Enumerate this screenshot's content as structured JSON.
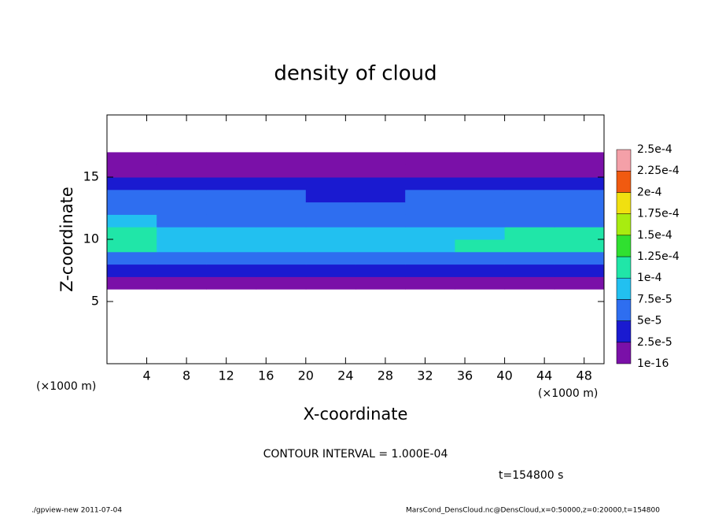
{
  "chart_data": {
    "type": "heatmap",
    "title": "density of cloud",
    "xlabel": "X-coordinate",
    "ylabel": "Z-coordinate",
    "xunit": "(×1000 m)",
    "yunit": "(×1000 m)",
    "contour_note": "CONTOUR INTERVAL = 1.000E-04",
    "time_note": "t=154800 s",
    "footer_left": "./gpview-new  2011-07-04",
    "footer_right": "MarsCond_DensCloud.nc@DensCloud,x=0:50000,z=0:20000,t=154800",
    "xlim": [
      0,
      50
    ],
    "ylim": [
      0,
      20
    ],
    "xticks": [
      4,
      8,
      12,
      16,
      20,
      24,
      28,
      32,
      36,
      40,
      44,
      48
    ],
    "yticks": [
      5,
      10,
      15
    ],
    "x": [
      0,
      5,
      10,
      15,
      20,
      25,
      30,
      35,
      40,
      45,
      50
    ],
    "y": [
      6,
      7,
      8,
      9,
      10,
      11,
      12,
      13,
      14,
      15,
      16,
      17
    ],
    "values": [
      [
        1e-05,
        1e-05,
        1e-05,
        1e-05,
        1e-05,
        1e-05,
        1e-05,
        1e-05,
        1e-05,
        1e-05
      ],
      [
        3e-05,
        3e-05,
        3e-05,
        3e-05,
        3e-05,
        3e-05,
        3e-05,
        3e-05,
        3e-05,
        3e-05
      ],
      [
        6e-05,
        6e-05,
        6e-05,
        6e-05,
        6e-05,
        6e-05,
        6e-05,
        6e-05,
        6e-05,
        6e-05
      ],
      [
        0.00011,
        8e-05,
        8e-05,
        8e-05,
        8e-05,
        8e-05,
        8e-05,
        0.00011,
        0.00011,
        0.00011
      ],
      [
        0.00011,
        8.5e-05,
        8.5e-05,
        8.5e-05,
        8.5e-05,
        8.5e-05,
        8.5e-05,
        8.5e-05,
        0.00012,
        0.00012
      ],
      [
        9e-05,
        6.5e-05,
        6.5e-05,
        6.5e-05,
        6.5e-05,
        6.5e-05,
        6.5e-05,
        6.5e-05,
        6.5e-05,
        6.5e-05
      ],
      [
        6e-05,
        6e-05,
        6e-05,
        6e-05,
        6e-05,
        6e-05,
        6e-05,
        6e-05,
        6e-05,
        6e-05
      ],
      [
        5.5e-05,
        5.5e-05,
        5.5e-05,
        5.5e-05,
        4e-05,
        4e-05,
        5.5e-05,
        5.5e-05,
        5.5e-05,
        5.5e-05
      ],
      [
        4e-05,
        4e-05,
        4e-05,
        4e-05,
        4e-05,
        4e-05,
        4e-05,
        4e-05,
        4e-05,
        4e-05
      ],
      [
        1e-05,
        1e-05,
        1e-05,
        1e-05,
        1e-05,
        1e-05,
        1e-05,
        1e-05,
        1e-05,
        1e-05
      ],
      [
        1e-05,
        1e-05,
        1e-05,
        1e-05,
        1e-05,
        1e-05,
        1e-05,
        1e-05,
        1e-05,
        1e-05
      ]
    ],
    "colorbar": {
      "levels": [
        {
          "value": 1e-16,
          "label": "1e-16"
        },
        {
          "value": 2.5e-05,
          "label": "2.5e-5"
        },
        {
          "value": 5e-05,
          "label": "5e-5"
        },
        {
          "value": 7.5e-05,
          "label": "7.5e-5"
        },
        {
          "value": 0.0001,
          "label": "1e-4"
        },
        {
          "value": 0.000125,
          "label": "1.25e-4"
        },
        {
          "value": 0.00015,
          "label": "1.5e-4"
        },
        {
          "value": 0.000175,
          "label": "1.75e-4"
        },
        {
          "value": 0.0002,
          "label": "2e-4"
        },
        {
          "value": 0.000225,
          "label": "2.25e-4"
        },
        {
          "value": 0.00025,
          "label": "2.5e-4"
        }
      ],
      "colors": [
        "#7a10a8",
        "#1a1ad0",
        "#2e6ef0",
        "#22c0f0",
        "#20e6a8",
        "#30e030",
        "#a8ec10",
        "#f0e010",
        "#f05a10",
        "#f4a0a8"
      ]
    }
  }
}
